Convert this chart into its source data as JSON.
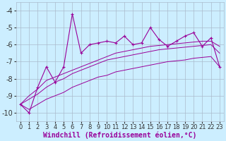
{
  "x": [
    0,
    1,
    2,
    3,
    4,
    5,
    6,
    7,
    8,
    9,
    10,
    11,
    12,
    13,
    14,
    15,
    16,
    17,
    18,
    19,
    20,
    21,
    22,
    23
  ],
  "y_main": [
    -9.5,
    -10.0,
    -8.5,
    -7.3,
    -8.2,
    -7.3,
    -4.2,
    -6.5,
    -6.0,
    -5.9,
    -5.8,
    -5.9,
    -5.5,
    -6.0,
    -5.9,
    -5.0,
    -5.7,
    -6.1,
    -5.8,
    -5.5,
    -5.3,
    -6.1,
    -5.6,
    -7.3
  ],
  "y_line1": [
    -9.5,
    -9.0,
    -8.6,
    -8.1,
    -7.9,
    -7.7,
    -7.5,
    -7.3,
    -7.1,
    -6.9,
    -6.7,
    -6.5,
    -6.4,
    -6.3,
    -6.2,
    -6.1,
    -6.05,
    -6.0,
    -5.95,
    -5.9,
    -5.85,
    -5.8,
    -5.8,
    -6.1
  ],
  "y_line2": [
    -9.5,
    -9.2,
    -8.9,
    -8.5,
    -8.2,
    -8.0,
    -7.7,
    -7.5,
    -7.3,
    -7.1,
    -6.9,
    -6.8,
    -6.7,
    -6.6,
    -6.5,
    -6.4,
    -6.3,
    -6.25,
    -6.2,
    -6.15,
    -6.1,
    -6.05,
    -6.0,
    -6.5
  ],
  "y_diag": [
    -9.5,
    -9.8,
    -9.5,
    -9.2,
    -9.0,
    -8.8,
    -8.5,
    -8.3,
    -8.1,
    -7.9,
    -7.8,
    -7.6,
    -7.5,
    -7.4,
    -7.3,
    -7.2,
    -7.1,
    -7.0,
    -6.95,
    -6.9,
    -6.8,
    -6.75,
    -6.7,
    -7.3
  ],
  "color": "#990099",
  "bg_color": "#cceeff",
  "grid_color": "#aabbcc",
  "xlim": [
    -0.5,
    23.5
  ],
  "ylim": [
    -10.5,
    -3.5
  ],
  "yticks": [
    -10,
    -9,
    -8,
    -7,
    -6,
    -5,
    -4
  ],
  "xticks": [
    0,
    1,
    2,
    3,
    4,
    5,
    6,
    7,
    8,
    9,
    10,
    11,
    12,
    13,
    14,
    15,
    16,
    17,
    18,
    19,
    20,
    21,
    22,
    23
  ],
  "xlabel": "Windchill (Refroidissement éolien,°C)",
  "xlabel_fontsize": 7.0,
  "tick_fontsize": 6.0,
  "ytick_fontsize": 7.0
}
